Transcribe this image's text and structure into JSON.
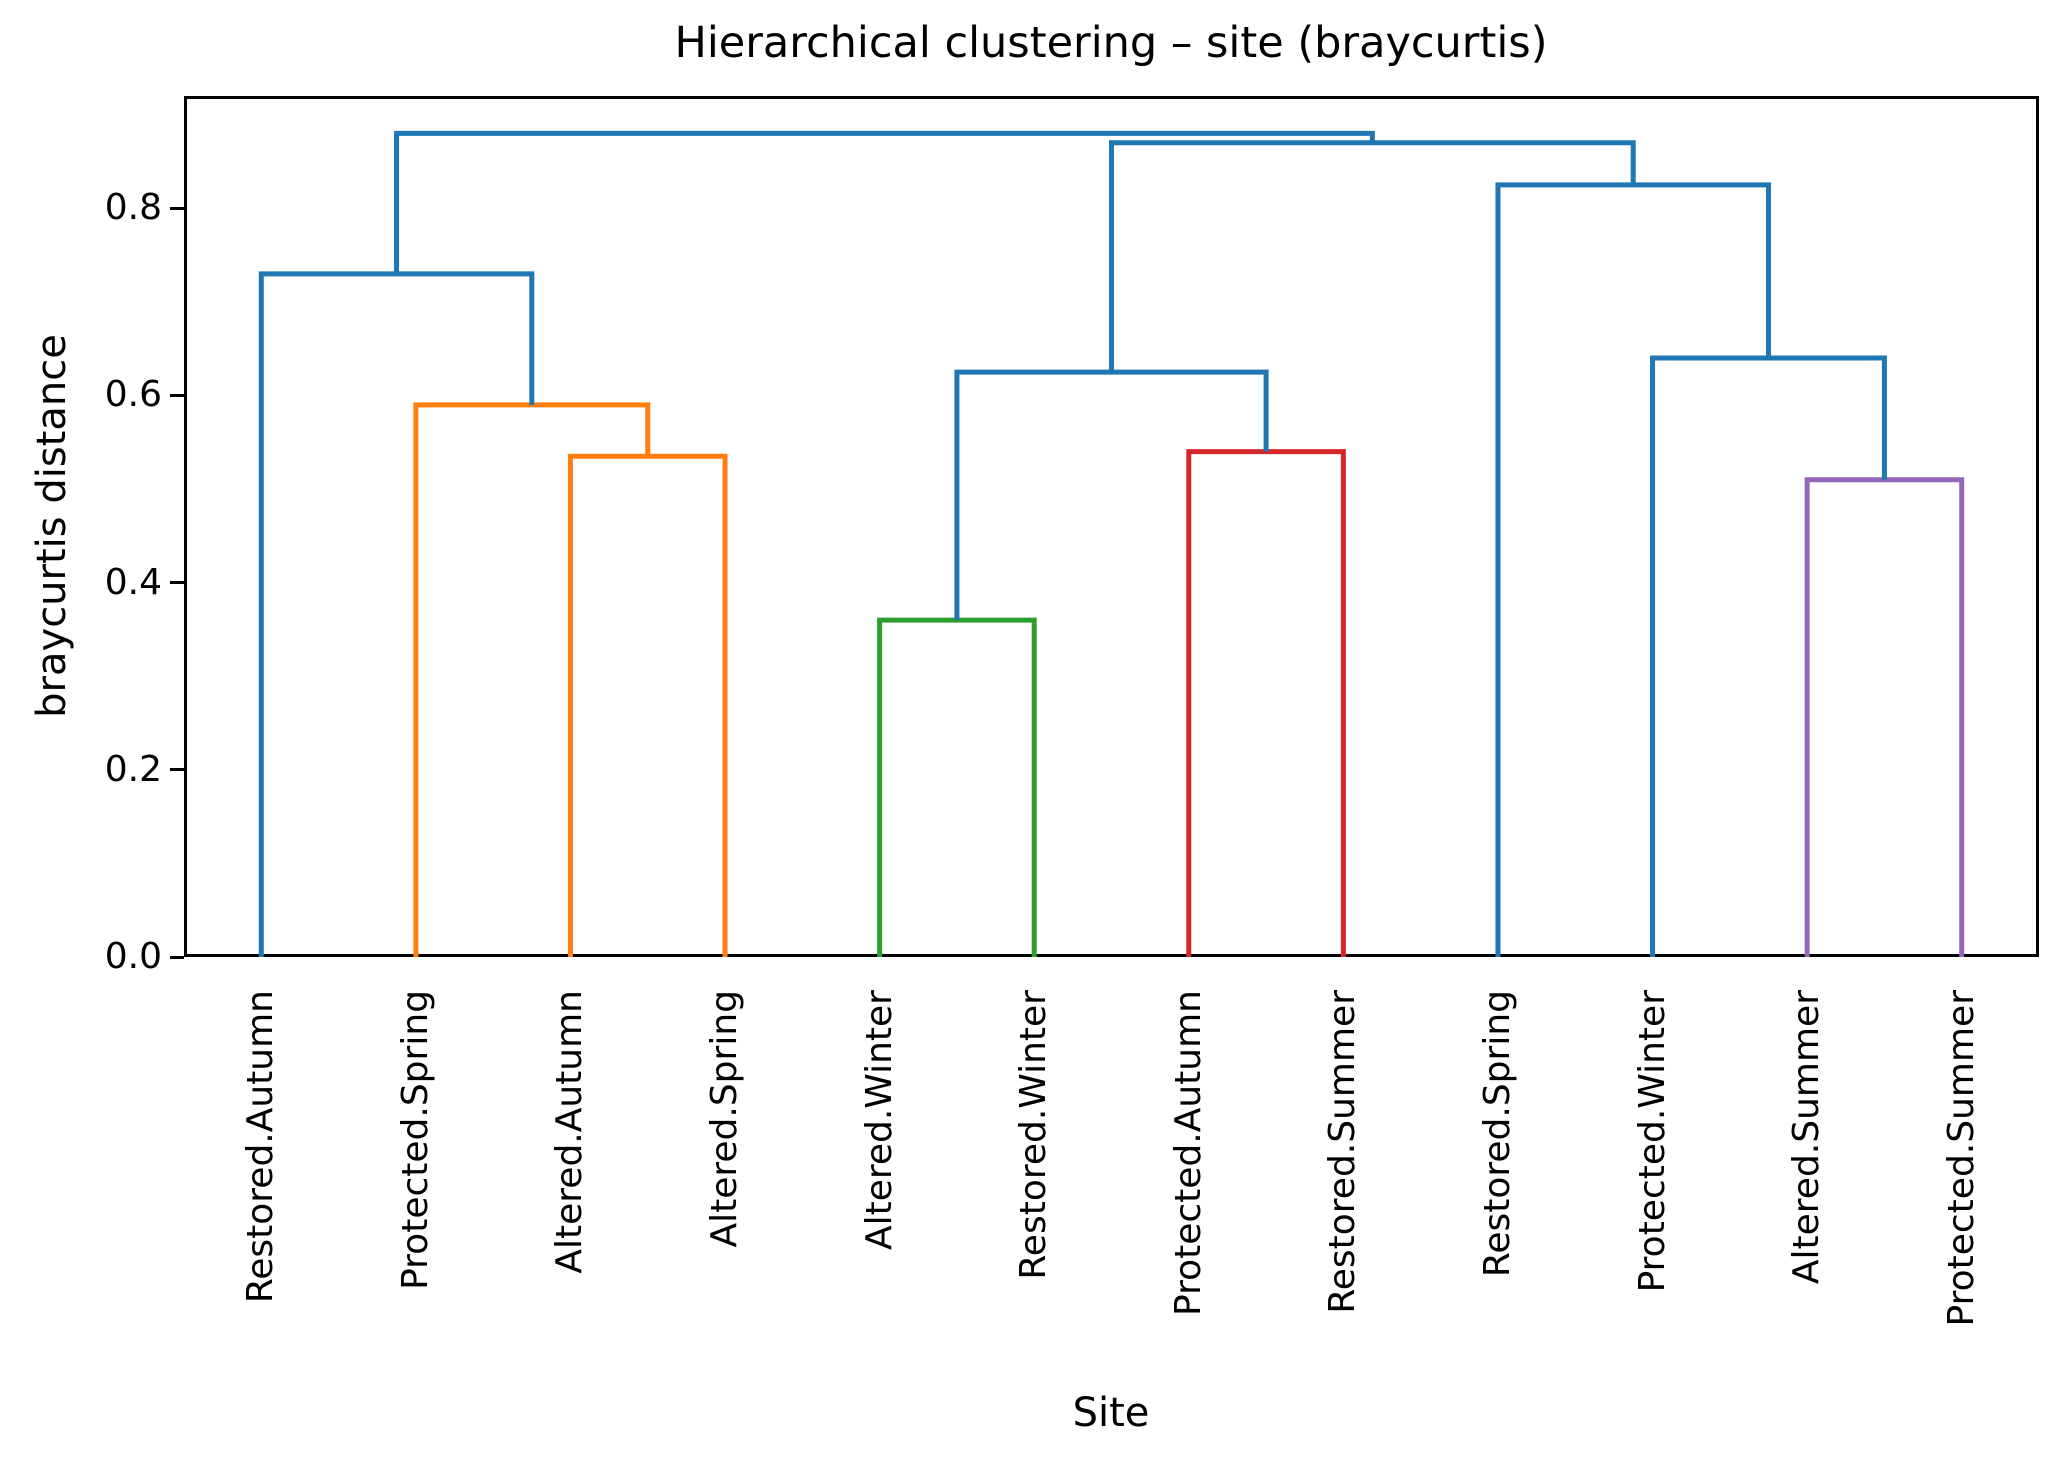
{
  "figure": {
    "title": "Hierarchical clustering – site (braycurtis)"
  },
  "axes": {
    "xlabel": "Site",
    "ylabel": "braycurtis distance",
    "ylim": [
      0,
      0.92
    ],
    "yticks": [
      0.0,
      0.2,
      0.4,
      0.6,
      0.8
    ],
    "ytick_labels": [
      "0.0",
      "0.2",
      "0.4",
      "0.6",
      "0.8"
    ],
    "grid": false
  },
  "chart_data": {
    "type": "dendrogram",
    "title": "Hierarchical clustering – site (braycurtis)",
    "xlabel": "Site",
    "ylabel": "braycurtis distance",
    "distance_metric": "braycurtis",
    "leaves": [
      "Restored.Autumn",
      "Protected.Spring",
      "Altered.Autumn",
      "Altered.Spring",
      "Altered.Winter",
      "Restored.Winter",
      "Protected.Autumn",
      "Restored.Summer",
      "Restored.Spring",
      "Protected.Winter",
      "Altered.Summer",
      "Protected.Summer"
    ],
    "merges": [
      {
        "a": "Altered.Winter",
        "b": "Restored.Winter",
        "distance": 0.36,
        "color": "green"
      },
      {
        "a": "Altered.Summer",
        "b": "Protected.Summer",
        "distance": 0.51,
        "color": "purple"
      },
      {
        "a": "Altered.Autumn",
        "b": "Altered.Spring",
        "distance": 0.535,
        "color": "orange"
      },
      {
        "a": "Protected.Autumn",
        "b": "Restored.Summer",
        "distance": 0.54,
        "color": "red"
      },
      {
        "a": "Protected.Spring",
        "b": "(Altered.Autumn+Altered.Spring)",
        "distance": 0.59,
        "color": "orange"
      },
      {
        "a": "(Altered.Winter+Restored.Winter)",
        "b": "(Protected.Autumn+Restored.Summer)",
        "distance": 0.625,
        "color": "blue"
      },
      {
        "a": "Protected.Winter",
        "b": "(Altered.Summer+Protected.Summer)",
        "distance": 0.64,
        "color": "blue"
      },
      {
        "a": "Restored.Autumn",
        "b": "(Protected.Spring+(Altered.Autumn+Altered.Spring))",
        "distance": 0.73,
        "color": "blue"
      },
      {
        "a": "Restored.Spring",
        "b": "(Protected.Winter+(Altered.Summer+Protected.Summer))",
        "distance": 0.825,
        "color": "blue"
      },
      {
        "a": "(winter+autumn/summer middle cluster)",
        "b": "(Restored.Spring right cluster)",
        "distance": 0.87,
        "color": "blue"
      },
      {
        "a": "(Restored.Autumn left cluster)",
        "b": "(middle+right cluster)",
        "distance": 0.88,
        "color": "blue"
      }
    ],
    "xlim": [
      0,
      120
    ],
    "leaf_x": [
      5,
      15,
      25,
      35,
      45,
      55,
      65,
      75,
      85,
      95,
      105,
      115
    ],
    "links": [
      {
        "x1": 45,
        "h1": 0,
        "x2": 55,
        "h2": 0,
        "top": 0.36,
        "color": "green"
      },
      {
        "x1": 105,
        "h1": 0,
        "x2": 115,
        "h2": 0,
        "top": 0.51,
        "color": "purple"
      },
      {
        "x1": 25,
        "h1": 0,
        "x2": 35,
        "h2": 0,
        "top": 0.535,
        "color": "orange"
      },
      {
        "x1": 65,
        "h1": 0,
        "x2": 75,
        "h2": 0,
        "top": 0.54,
        "color": "red"
      },
      {
        "x1": 15,
        "h1": 0,
        "x2": 30,
        "h2": 0.535,
        "top": 0.59,
        "color": "orange"
      },
      {
        "x1": 50,
        "h1": 0.36,
        "x2": 70,
        "h2": 0.54,
        "top": 0.625,
        "color": "blue"
      },
      {
        "x1": 95,
        "h1": 0,
        "x2": 110,
        "h2": 0.51,
        "top": 0.64,
        "color": "blue"
      },
      {
        "x1": 5,
        "h1": 0,
        "x2": 22.5,
        "h2": 0.59,
        "top": 0.73,
        "color": "blue"
      },
      {
        "x1": 85,
        "h1": 0,
        "x2": 102.5,
        "h2": 0.64,
        "top": 0.825,
        "color": "blue"
      },
      {
        "x1": 60,
        "h1": 0.625,
        "x2": 93.75,
        "h2": 0.825,
        "top": 0.87,
        "color": "blue"
      },
      {
        "x1": 13.75,
        "h1": 0.73,
        "x2": 76.875,
        "h2": 0.87,
        "top": 0.88,
        "color": "blue"
      }
    ],
    "colors": {
      "blue": "#1f77b4",
      "orange": "#ff7f0e",
      "green": "#2ca02c",
      "red": "#d62728",
      "purple": "#9467bd"
    },
    "line_width": 5
  }
}
